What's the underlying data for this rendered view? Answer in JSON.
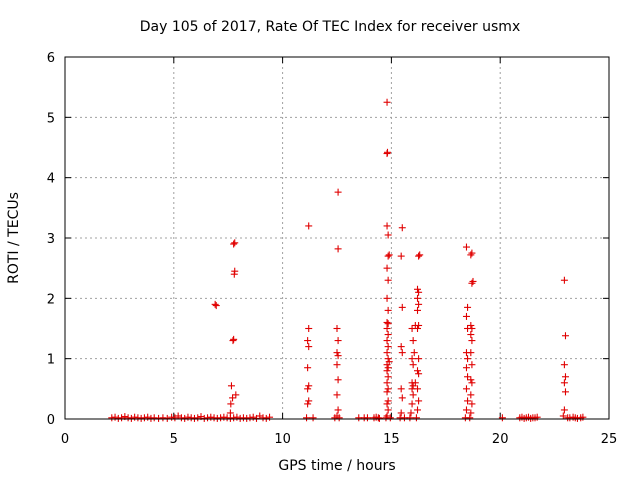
{
  "chart_data": {
    "type": "scatter",
    "title": "Day 105 of 2017, Rate Of TEC Index for receiver usmx",
    "xlabel": "GPS time / hours",
    "ylabel": "ROTI / TECUs",
    "xlim": [
      0,
      25
    ],
    "ylim": [
      0,
      6
    ],
    "xticks": [
      "0",
      "5",
      "10",
      "15",
      "20",
      "25"
    ],
    "yticks": [
      "0",
      "1",
      "2",
      "3",
      "4",
      "5",
      "6"
    ],
    "grid": true,
    "marker": "+",
    "color": "#e00000",
    "series": [
      {
        "name": "ROTI",
        "points": [
          [
            2.15,
            0.02
          ],
          [
            2.3,
            0.03
          ],
          [
            2.45,
            0.01
          ],
          [
            2.6,
            0.02
          ],
          [
            2.75,
            0.04
          ],
          [
            2.9,
            0.02
          ],
          [
            3.05,
            0.01
          ],
          [
            3.2,
            0.03
          ],
          [
            3.35,
            0.02
          ],
          [
            3.5,
            0.01
          ],
          [
            3.65,
            0.02
          ],
          [
            3.8,
            0.03
          ],
          [
            3.95,
            0.01
          ],
          [
            4.1,
            0.02
          ],
          [
            4.3,
            0.01
          ],
          [
            4.5,
            0.02
          ],
          [
            4.7,
            0.01
          ],
          [
            4.9,
            0.03
          ],
          [
            5.05,
            0.02
          ],
          [
            5.2,
            0.05
          ],
          [
            5.35,
            0.02
          ],
          [
            5.5,
            0.01
          ],
          [
            5.65,
            0.03
          ],
          [
            5.8,
            0.02
          ],
          [
            5.95,
            0.01
          ],
          [
            6.1,
            0.02
          ],
          [
            6.25,
            0.04
          ],
          [
            6.4,
            0.01
          ],
          [
            6.55,
            0.02
          ],
          [
            6.7,
            0.03
          ],
          [
            6.85,
            0.02
          ],
          [
            7.0,
            0.01
          ],
          [
            7.15,
            0.02
          ],
          [
            7.3,
            0.03
          ],
          [
            7.45,
            0.02
          ],
          [
            7.6,
            0.01
          ],
          [
            7.75,
            0.02
          ],
          [
            7.9,
            0.03
          ],
          [
            8.05,
            0.01
          ],
          [
            8.2,
            0.02
          ],
          [
            8.35,
            0.01
          ],
          [
            8.5,
            0.02
          ],
          [
            8.65,
            0.03
          ],
          [
            8.8,
            0.01
          ],
          [
            8.95,
            0.05
          ],
          [
            9.1,
            0.02
          ],
          [
            9.25,
            0.01
          ],
          [
            9.4,
            0.03
          ],
          [
            6.9,
            1.9
          ],
          [
            6.95,
            1.88
          ],
          [
            7.6,
            0.1
          ],
          [
            7.62,
            0.25
          ],
          [
            7.65,
            0.55
          ],
          [
            7.7,
            0.35
          ],
          [
            7.72,
            1.3
          ],
          [
            7.75,
            1.32
          ],
          [
            7.78,
            2.4
          ],
          [
            7.8,
            2.45
          ],
          [
            7.75,
            2.9
          ],
          [
            7.8,
            2.92
          ],
          [
            7.85,
            0.4
          ],
          [
            11.1,
            0.02
          ],
          [
            11.15,
            0.25
          ],
          [
            11.2,
            0.3
          ],
          [
            11.15,
            0.5
          ],
          [
            11.2,
            0.55
          ],
          [
            11.15,
            0.85
          ],
          [
            11.2,
            1.2
          ],
          [
            11.15,
            1.3
          ],
          [
            11.2,
            1.5
          ],
          [
            11.2,
            3.2
          ],
          [
            11.4,
            0.02
          ],
          [
            12.4,
            0.02
          ],
          [
            12.5,
            0.05
          ],
          [
            12.55,
            0.15
          ],
          [
            12.5,
            0.4
          ],
          [
            12.55,
            0.65
          ],
          [
            12.5,
            0.9
          ],
          [
            12.55,
            1.05
          ],
          [
            12.5,
            1.1
          ],
          [
            12.55,
            1.3
          ],
          [
            12.5,
            1.5
          ],
          [
            12.55,
            2.82
          ],
          [
            12.55,
            3.76
          ],
          [
            12.6,
            0.02
          ],
          [
            13.5,
            0.02
          ],
          [
            13.75,
            0.02
          ],
          [
            13.9,
            0.02
          ],
          [
            14.2,
            0.02
          ],
          [
            14.3,
            0.03
          ],
          [
            14.4,
            0.02
          ],
          [
            14.45,
            0.01
          ],
          [
            14.75,
            0.02
          ],
          [
            14.8,
            0.05
          ],
          [
            14.85,
            0.15
          ],
          [
            14.8,
            0.25
          ],
          [
            14.85,
            0.3
          ],
          [
            14.8,
            0.45
          ],
          [
            14.85,
            0.5
          ],
          [
            14.8,
            0.6
          ],
          [
            14.85,
            0.7
          ],
          [
            14.8,
            0.8
          ],
          [
            14.85,
            0.85
          ],
          [
            14.8,
            0.9
          ],
          [
            14.85,
            1.0
          ],
          [
            14.8,
            1.1
          ],
          [
            14.85,
            1.2
          ],
          [
            14.8,
            1.3
          ],
          [
            14.85,
            1.4
          ],
          [
            14.8,
            1.5
          ],
          [
            14.85,
            1.58
          ],
          [
            14.8,
            1.6
          ],
          [
            14.85,
            1.8
          ],
          [
            14.8,
            2.0
          ],
          [
            14.85,
            2.3
          ],
          [
            14.8,
            2.5
          ],
          [
            14.85,
            2.7
          ],
          [
            14.9,
            2.72
          ],
          [
            14.85,
            3.05
          ],
          [
            14.8,
            3.2
          ],
          [
            14.8,
            4.4
          ],
          [
            14.82,
            4.42
          ],
          [
            14.8,
            5.25
          ],
          [
            14.9,
            0.95
          ],
          [
            14.95,
            0.02
          ],
          [
            15.4,
            0.02
          ],
          [
            15.45,
            0.1
          ],
          [
            15.5,
            0.35
          ],
          [
            15.45,
            0.5
          ],
          [
            15.5,
            1.1
          ],
          [
            15.45,
            1.2
          ],
          [
            15.5,
            1.85
          ],
          [
            15.45,
            2.7
          ],
          [
            15.5,
            3.17
          ],
          [
            15.6,
            0.02
          ],
          [
            15.85,
            0.02
          ],
          [
            15.9,
            0.1
          ],
          [
            15.95,
            0.25
          ],
          [
            16.0,
            0.4
          ],
          [
            15.95,
            0.5
          ],
          [
            16.0,
            0.55
          ],
          [
            15.95,
            0.6
          ],
          [
            16.0,
            0.9
          ],
          [
            15.95,
            1.0
          ],
          [
            16.05,
            1.1
          ],
          [
            16.0,
            1.3
          ],
          [
            15.95,
            1.5
          ],
          [
            16.1,
            1.55
          ],
          [
            16.15,
            0.02
          ],
          [
            16.2,
            0.15
          ],
          [
            16.25,
            0.3
          ],
          [
            16.2,
            0.5
          ],
          [
            16.25,
            0.75
          ],
          [
            16.2,
            0.8
          ],
          [
            16.25,
            1.0
          ],
          [
            16.2,
            1.5
          ],
          [
            16.25,
            1.55
          ],
          [
            16.2,
            1.8
          ],
          [
            16.25,
            1.9
          ],
          [
            16.2,
            2.0
          ],
          [
            16.25,
            2.1
          ],
          [
            16.2,
            2.15
          ],
          [
            16.25,
            2.7
          ],
          [
            16.3,
            2.72
          ],
          [
            16.1,
            0.6
          ],
          [
            18.4,
            0.02
          ],
          [
            18.45,
            0.15
          ],
          [
            18.5,
            0.3
          ],
          [
            18.45,
            0.5
          ],
          [
            18.5,
            0.7
          ],
          [
            18.45,
            0.85
          ],
          [
            18.5,
            1.0
          ],
          [
            18.45,
            1.1
          ],
          [
            18.5,
            1.5
          ],
          [
            18.45,
            1.7
          ],
          [
            18.5,
            1.85
          ],
          [
            18.45,
            2.85
          ],
          [
            18.6,
            0.02
          ],
          [
            18.65,
            0.1
          ],
          [
            18.7,
            0.25
          ],
          [
            18.65,
            0.4
          ],
          [
            18.7,
            0.6
          ],
          [
            18.65,
            0.65
          ],
          [
            18.7,
            0.9
          ],
          [
            18.65,
            1.1
          ],
          [
            18.7,
            1.3
          ],
          [
            18.65,
            1.4
          ],
          [
            18.7,
            1.5
          ],
          [
            18.65,
            1.55
          ],
          [
            18.7,
            2.25
          ],
          [
            18.75,
            2.28
          ],
          [
            18.65,
            2.72
          ],
          [
            18.7,
            2.75
          ],
          [
            20.1,
            0.02
          ],
          [
            20.9,
            0.02
          ],
          [
            21.0,
            0.03
          ],
          [
            21.1,
            0.01
          ],
          [
            21.2,
            0.02
          ],
          [
            21.3,
            0.03
          ],
          [
            21.4,
            0.01
          ],
          [
            21.5,
            0.02
          ],
          [
            21.6,
            0.02
          ],
          [
            21.7,
            0.03
          ],
          [
            22.9,
            0.05
          ],
          [
            22.95,
            0.15
          ],
          [
            23.0,
            0.45
          ],
          [
            22.95,
            0.6
          ],
          [
            23.0,
            0.7
          ],
          [
            22.95,
            0.9
          ],
          [
            23.0,
            1.38
          ],
          [
            22.95,
            2.3
          ],
          [
            23.1,
            0.02
          ],
          [
            23.2,
            0.02
          ],
          [
            23.35,
            0.03
          ],
          [
            23.45,
            0.02
          ],
          [
            23.55,
            0.01
          ],
          [
            23.7,
            0.02
          ],
          [
            23.8,
            0.03
          ]
        ]
      }
    ]
  }
}
